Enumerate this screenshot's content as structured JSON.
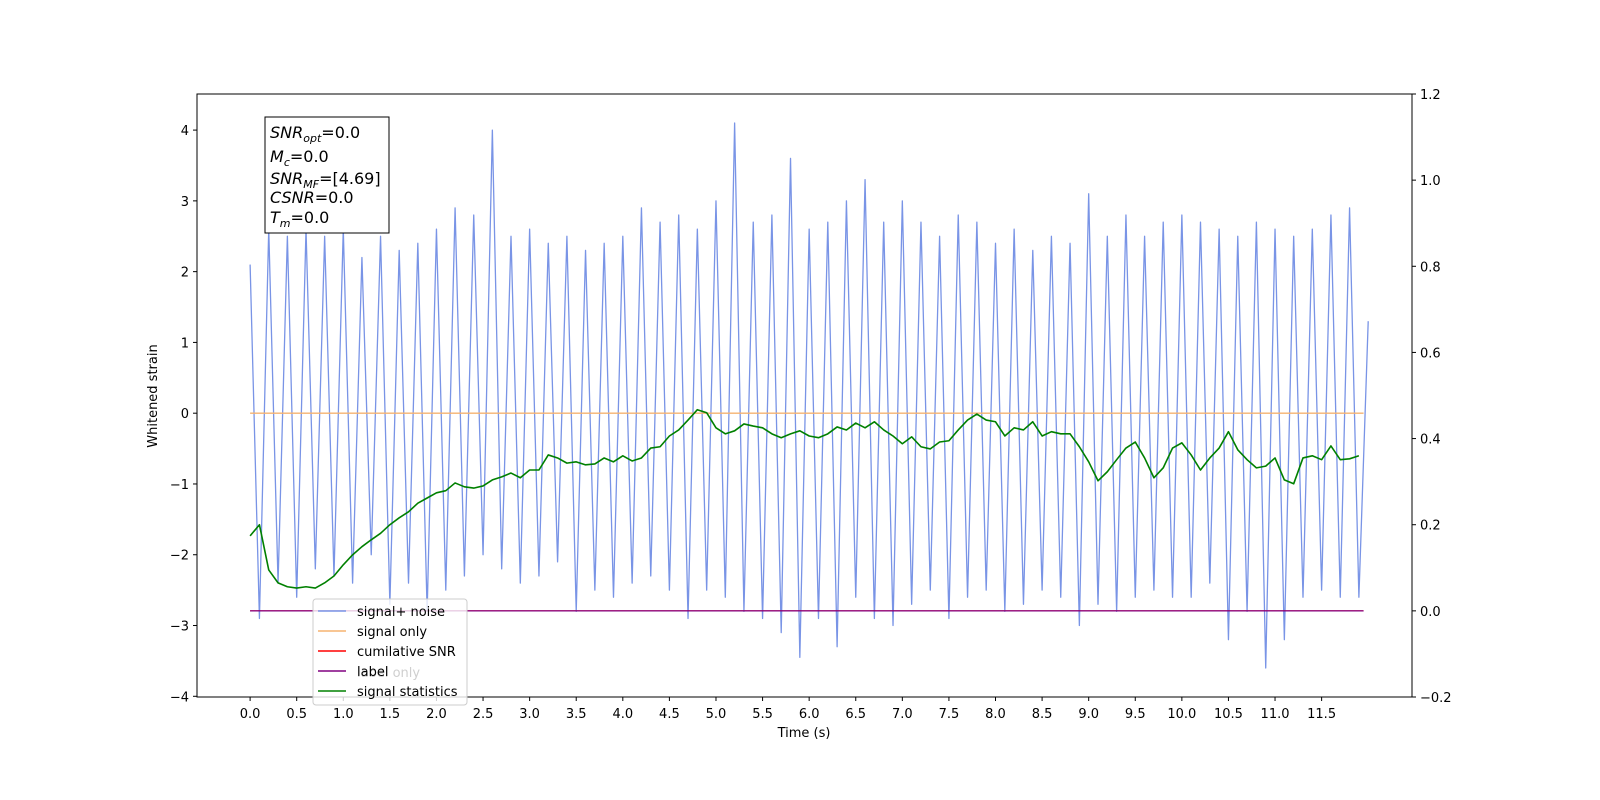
{
  "chart_data": {
    "type": "line",
    "x_label": "Time (s)",
    "y_label": "Whitened strain",
    "xlim": [
      -0.57,
      12.47
    ],
    "ylim": [
      -4.01,
      4.51
    ],
    "y2lim": [
      -0.2,
      1.2
    ],
    "xticks": [
      {
        "value": 0,
        "label": "0.0"
      },
      0.5,
      {
        "value": 1,
        "label": "1.0"
      },
      1.5,
      {
        "value": 2,
        "label": "2.0"
      },
      2.5,
      {
        "value": 3,
        "label": "3.0"
      },
      3.5,
      {
        "value": 4,
        "label": "4.0"
      },
      4.5,
      {
        "value": 5,
        "label": "5.0"
      },
      5.5,
      {
        "value": 6,
        "label": "6.0"
      },
      6.5,
      {
        "value": 7,
        "label": "7.0"
      },
      7.5,
      {
        "value": 8,
        "label": "8.0"
      },
      8.5,
      {
        "value": 9,
        "label": "9.0"
      },
      9.5,
      {
        "value": 10,
        "label": "10.0"
      },
      10.5,
      {
        "value": 11,
        "label": "11.0"
      },
      11.5
    ],
    "yticks": [
      {
        "value": -4,
        "label": "−4"
      },
      {
        "value": -3,
        "label": "−3"
      },
      {
        "value": -2,
        "label": "−2"
      },
      {
        "value": -1,
        "label": "−1"
      },
      0,
      1,
      2,
      3,
      4
    ],
    "y2ticks": [
      {
        "value": -0.2,
        "label": "−0.2"
      },
      {
        "value": 0,
        "label": "0.0"
      },
      0.2,
      0.4,
      0.6,
      0.8,
      {
        "value": 1,
        "label": "1.0"
      },
      {
        "value": 1.2,
        "label": "1.2"
      }
    ],
    "x": [
      0,
      0.1,
      0.2,
      0.3,
      0.4,
      0.5,
      0.6,
      0.7,
      0.8,
      0.9,
      1,
      1.1,
      1.2,
      1.3,
      1.4,
      1.5,
      1.6,
      1.7,
      1.8,
      1.9,
      2,
      2.1,
      2.2,
      2.3,
      2.4,
      2.5,
      2.6,
      2.7,
      2.8,
      2.9,
      3,
      3.1,
      3.2,
      3.3,
      3.4,
      3.5,
      3.6,
      3.7,
      3.8,
      3.9,
      4,
      4.1,
      4.2,
      4.3,
      4.4,
      4.5,
      4.6,
      4.7,
      4.8,
      4.9,
      5,
      5.1,
      5.2,
      5.3,
      5.4,
      5.5,
      5.6,
      5.7,
      5.8,
      5.9,
      6,
      6.1,
      6.2,
      6.3,
      6.4,
      6.5,
      6.6,
      6.7,
      6.8,
      6.9,
      7,
      7.1,
      7.2,
      7.3,
      7.4,
      7.5,
      7.6,
      7.7,
      7.8,
      7.9,
      8,
      8.1,
      8.2,
      8.3,
      8.4,
      8.5,
      8.6,
      8.7,
      8.8,
      8.9,
      9,
      9.1,
      9.2,
      9.3,
      9.4,
      9.5,
      9.6,
      9.7,
      9.8,
      9.9,
      10,
      10.1,
      10.2,
      10.3,
      10.4,
      10.5,
      10.6,
      10.7,
      10.8,
      10.9,
      11,
      11.1,
      11.2,
      11.3,
      11.4,
      11.5,
      11.6,
      11.7,
      11.8,
      11.9,
      12
    ],
    "series": [
      {
        "name": "signal+ noise",
        "color": "#7994e6",
        "values": [
          2.1,
          -2.9,
          2.6,
          -2.4,
          2.5,
          -2.6,
          2.6,
          -2.2,
          2.5,
          -2.3,
          2.6,
          -2.4,
          2.2,
          -2.0,
          2.5,
          -2.7,
          2.3,
          -2.4,
          2.4,
          -2.8,
          2.6,
          -2.5,
          2.9,
          -2.3,
          2.8,
          -2.0,
          4.0,
          -2.2,
          2.5,
          -2.4,
          2.6,
          -2.3,
          2.4,
          -2.1,
          2.5,
          -2.8,
          2.3,
          -2.5,
          2.4,
          -2.6,
          2.5,
          -2.4,
          2.9,
          -2.3,
          2.7,
          -2.5,
          2.8,
          -2.9,
          2.6,
          -2.5,
          3.0,
          -2.6,
          4.1,
          -2.8,
          2.7,
          -2.9,
          2.8,
          -3.1,
          3.6,
          -3.45,
          2.6,
          -2.9,
          2.7,
          -3.3,
          3.0,
          -2.6,
          3.3,
          -2.9,
          2.7,
          -3.0,
          3.0,
          -2.7,
          2.7,
          -2.5,
          2.5,
          -2.9,
          2.8,
          -2.6,
          2.7,
          -2.5,
          2.4,
          -2.8,
          2.6,
          -2.7,
          2.3,
          -2.5,
          2.5,
          -2.6,
          2.4,
          -3.0,
          3.1,
          -2.7,
          2.5,
          -2.8,
          2.8,
          -2.6,
          2.5,
          -2.5,
          2.7,
          -2.6,
          2.8,
          -2.6,
          2.7,
          -2.4,
          2.6,
          -3.2,
          2.5,
          -2.8,
          2.7,
          -3.6,
          2.6,
          -3.2,
          2.5,
          -2.6,
          2.6,
          -2.5,
          2.8,
          -2.6,
          2.9,
          -2.6,
          1.3
        ]
      },
      {
        "name": "signal only",
        "color": "#f5b370",
        "x": [
          0,
          11.95
        ],
        "values": [
          0,
          0
        ]
      },
      {
        "name": "cumilative SNR",
        "color": "#ff0000",
        "axis": "y2",
        "x": [
          0,
          11.95
        ],
        "values": [
          0,
          0
        ]
      },
      {
        "name": "label",
        "color": "#800080",
        "axis": "y2",
        "x": [
          0,
          11.95
        ],
        "values": [
          0,
          0
        ]
      },
      {
        "name": "signal statistics",
        "color": "#008000",
        "axis": "y2",
        "values": [
          0.174,
          0.2,
          0.095,
          0.065,
          0.056,
          0.053,
          0.056,
          0.053,
          0.065,
          0.081,
          0.107,
          0.13,
          0.149,
          0.165,
          0.18,
          0.2,
          0.216,
          0.23,
          0.25,
          0.262,
          0.274,
          0.279,
          0.297,
          0.288,
          0.285,
          0.29,
          0.304,
          0.311,
          0.32,
          0.309,
          0.327,
          0.327,
          0.362,
          0.355,
          0.343,
          0.346,
          0.339,
          0.341,
          0.355,
          0.346,
          0.36,
          0.348,
          0.355,
          0.378,
          0.381,
          0.406,
          0.42,
          0.443,
          0.467,
          0.46,
          0.425,
          0.411,
          0.418,
          0.434,
          0.429,
          0.425,
          0.411,
          0.402,
          0.411,
          0.418,
          0.406,
          0.402,
          0.411,
          0.427,
          0.42,
          0.436,
          0.425,
          0.439,
          0.42,
          0.406,
          0.388,
          0.404,
          0.381,
          0.376,
          0.392,
          0.395,
          0.42,
          0.443,
          0.457,
          0.443,
          0.439,
          0.406,
          0.425,
          0.42,
          0.439,
          0.406,
          0.416,
          0.411,
          0.411,
          0.381,
          0.346,
          0.302,
          0.323,
          0.351,
          0.378,
          0.392,
          0.355,
          0.309,
          0.332,
          0.378,
          0.39,
          0.362,
          0.327,
          0.355,
          0.378,
          0.416,
          0.374,
          0.351,
          0.332,
          0.336,
          0.355,
          0.304,
          0.295,
          0.355,
          0.36,
          0.351,
          0.383,
          0.351,
          0.353,
          0.36,
          null
        ]
      }
    ],
    "legend_hidden_entry": "label only",
    "annotation": [
      {
        "main": "SNR",
        "sub": "opt",
        "text": "=0.0"
      },
      {
        "main": "M",
        "sub": "c",
        "text": "=0.0"
      },
      {
        "main": "SNR",
        "sub": "MF",
        "text": "=[4.69]"
      },
      {
        "main": "CSNR",
        "text": "=0.0"
      },
      {
        "main": "T",
        "sub": "m",
        "text": "=0.0"
      }
    ]
  }
}
